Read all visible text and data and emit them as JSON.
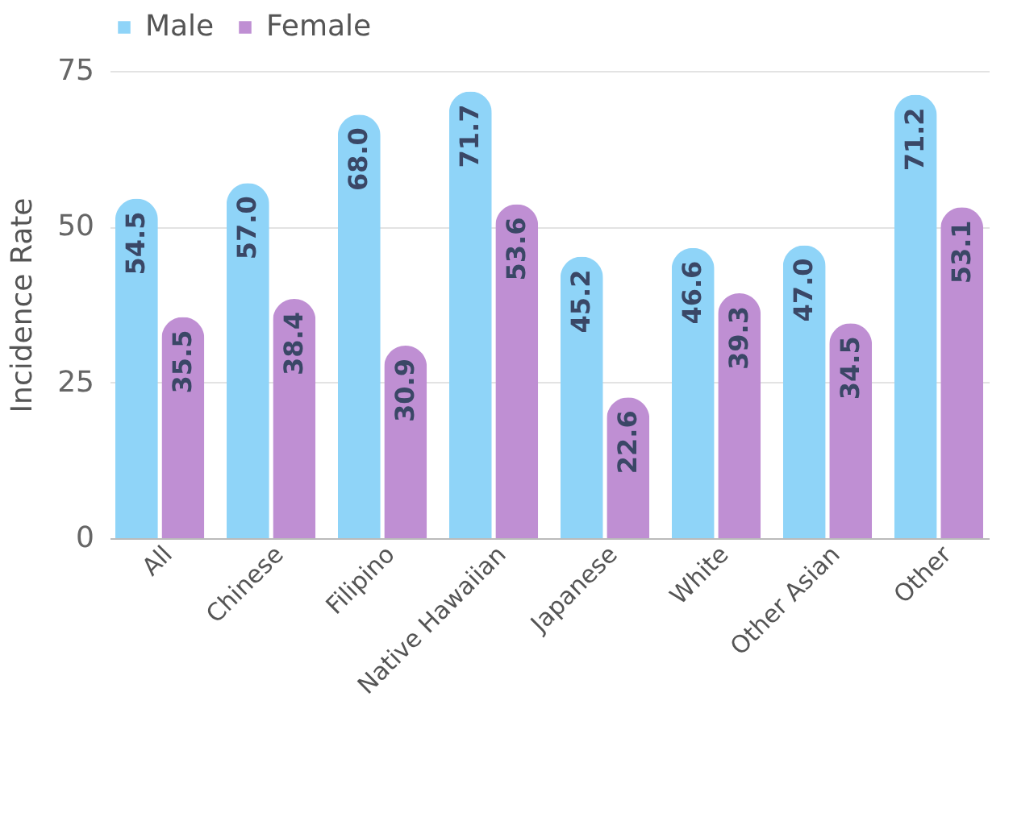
{
  "chart_data": {
    "type": "bar",
    "ylabel": "Incidence Rate",
    "categories": [
      "All",
      "Chinese",
      "Filipino",
      "Native Hawaiian",
      "Japanese",
      "White",
      "Other Asian",
      "Other"
    ],
    "series": [
      {
        "name": "Male",
        "color": "#8fd4f8",
        "values": [
          54.5,
          57,
          68,
          71.7,
          45.2,
          46.6,
          47,
          71.2
        ],
        "value_labels": [
          "54.5",
          "57.0",
          "68.0",
          "71.7",
          "45.2",
          "46.6",
          "47.0",
          "71.2"
        ]
      },
      {
        "name": "Female",
        "color": "#bf8fd3",
        "values": [
          35.5,
          38.4,
          30.9,
          53.6,
          22.6,
          39.3,
          34.5,
          53.1
        ],
        "value_labels": [
          "35.5",
          "38.4",
          "30.9",
          "53.6",
          "22.6",
          "39.3",
          "34.5",
          "53.1"
        ]
      }
    ],
    "ylim": [
      0,
      75
    ],
    "yticks": [
      0,
      25,
      50,
      75
    ],
    "grid": "y",
    "legend": "top"
  }
}
